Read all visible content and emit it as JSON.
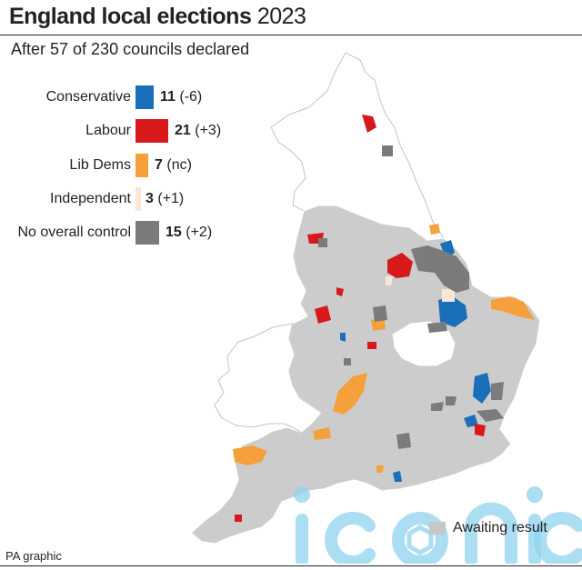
{
  "title": {
    "bold": "England local elections",
    "year": "2023"
  },
  "subtitle": "After 57 of 230 councils declared",
  "legend": [
    {
      "label": "Conservative",
      "count": "11",
      "change": "(-6)",
      "color": "#1a6fba"
    },
    {
      "label": "Labour",
      "count": "21",
      "change": "(+3)",
      "color": "#d7191c"
    },
    {
      "label": "Lib Dems",
      "count": "7",
      "change": "(nc)",
      "color": "#f5a03a"
    },
    {
      "label": "Independent",
      "count": "3",
      "change": "(+1)",
      "color": "#fbe6d6"
    },
    {
      "label": "No overall control",
      "count": "15",
      "change": "(+2)",
      "color": "#7b7b7b"
    }
  ],
  "awaiting": {
    "label": "Awaiting result",
    "color": "#c7c7c7"
  },
  "credit": "PA graphic",
  "watermark": "iconic"
}
